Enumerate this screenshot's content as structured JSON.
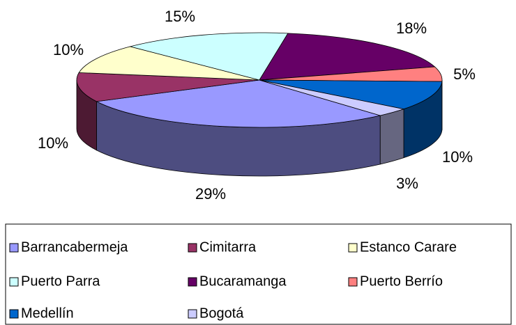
{
  "chart_data": {
    "type": "pie3d",
    "categories": [
      "Barrancabermeja",
      "Cimitarra",
      "Estanco Carare",
      "Puerto Parra",
      "Bucaramanga",
      "Puerto Berrío",
      "Medellín",
      "Bogotá"
    ],
    "values": [
      29,
      10,
      10,
      15,
      18,
      5,
      10,
      3
    ],
    "value_labels": [
      "29%",
      "10%",
      "10%",
      "15%",
      "18%",
      "5%",
      "10%",
      "3%"
    ],
    "colors": [
      "#9999ff",
      "#993366",
      "#ffffcc",
      "#ccffff",
      "#660066",
      "#ff8080",
      "#0066cc",
      "#ccccff"
    ],
    "legend": "bottom"
  }
}
